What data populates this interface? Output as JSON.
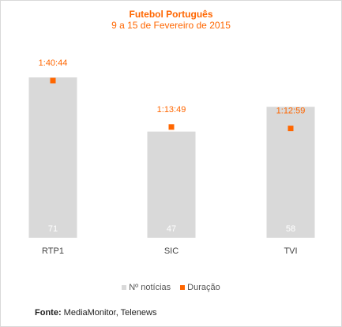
{
  "chart_data": {
    "type": "bar",
    "title": "Futebol Português",
    "subtitle": "9 a 15 de Fevereiro de 2015",
    "categories": [
      "RTP1",
      "SIC",
      "TVI"
    ],
    "series": [
      {
        "name": "Nº notícias",
        "values": [
          71,
          47,
          58
        ],
        "labels": [
          "71",
          "47",
          "58"
        ],
        "color": "#d9d9d9"
      },
      {
        "name": "Duração",
        "values_seconds": [
          6044,
          4429,
          4379
        ],
        "labels": [
          "1:40:44",
          "1:13:49",
          "1:12:59"
        ],
        "color": "#ff6600"
      }
    ],
    "legend_position": "bottom",
    "grid": false
  },
  "source": {
    "label": "Fonte:",
    "text": " MediaMonitor, Telenews"
  }
}
